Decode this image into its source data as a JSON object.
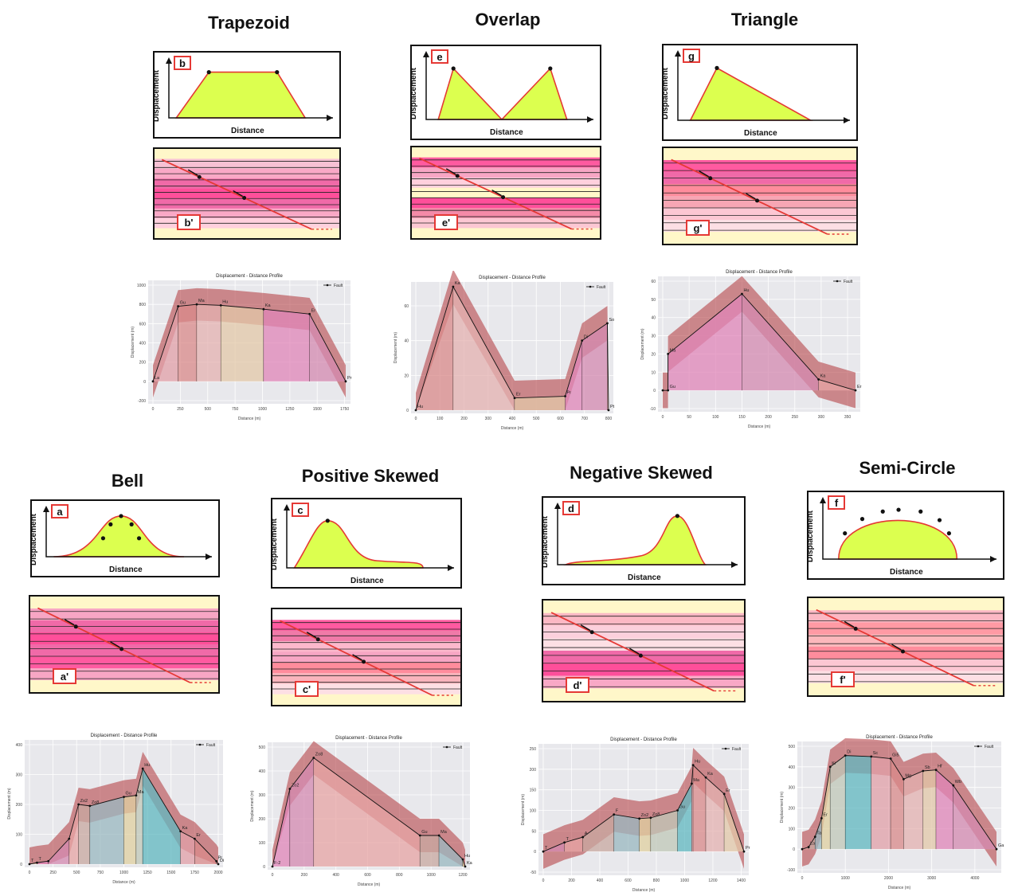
{
  "panels": [
    {
      "id": "trapezoid",
      "title": "Trapezoid",
      "badge": "b",
      "section_badge": "b'",
      "x_label": "Distance",
      "y_label": "Displacement",
      "profile": {
        "title": "Displacement - Distance Profile",
        "legend": "Fault",
        "xlabel": "Distance (m)",
        "ylabel": "Displacement (m)",
        "x_ticks": [
          "0",
          "250",
          "500",
          "750",
          "1000",
          "1250",
          "1500",
          "1750"
        ],
        "y_ticks": [
          "-200",
          "0",
          "200",
          "400",
          "600",
          "800",
          "1000"
        ],
        "points": [
          {
            "label": "La",
            "x": 0,
            "y": 0
          },
          {
            "label": "Gu",
            "x": 230,
            "y": 780
          },
          {
            "label": "Ma",
            "x": 400,
            "y": 800
          },
          {
            "label": "Hu",
            "x": 620,
            "y": 790
          },
          {
            "label": "Ka",
            "x": 1010,
            "y": 750
          },
          {
            "label": "Er",
            "x": 1430,
            "y": 700
          },
          {
            "label": "Pr",
            "x": 1760,
            "y": 0
          }
        ]
      }
    },
    {
      "id": "overlap",
      "title": "Overlap",
      "badge": "e",
      "section_badge": "e'",
      "x_label": "Distance",
      "y_label": "Displacement",
      "profile": {
        "title": "Displacement - Distance Profile",
        "legend": "Fault",
        "xlabel": "Distance (m)",
        "ylabel": "Displacement (m)",
        "x_ticks": [
          "0",
          "100",
          "200",
          "300",
          "400",
          "500",
          "600",
          "700",
          "800"
        ],
        "y_ticks": [
          "0",
          "20",
          "40",
          "60"
        ],
        "points": [
          {
            "label": "Hu",
            "x": 0,
            "y": 0
          },
          {
            "label": "Ka",
            "x": 155,
            "y": 71
          },
          {
            "label": "Er",
            "x": 410,
            "y": 7
          },
          {
            "label": "Pr",
            "x": 620,
            "y": 8
          },
          {
            "label": "Di",
            "x": 690,
            "y": 40
          },
          {
            "label": "So",
            "x": 795,
            "y": 50
          },
          {
            "label": "Pt",
            "x": 800,
            "y": 0
          }
        ]
      }
    },
    {
      "id": "triangle",
      "title": "Triangle",
      "badge": "g",
      "section_badge": "g'",
      "x_label": "Distance",
      "y_label": "Displacement",
      "profile": {
        "title": "Displacement - Distance Profile",
        "legend": "Fault",
        "xlabel": "Distance (m)",
        "ylabel": "Displacement (m)",
        "x_ticks": [
          "0",
          "50",
          "100",
          "150",
          "200",
          "250",
          "300",
          "350"
        ],
        "y_ticks": [
          "-10",
          "0",
          "10",
          "20",
          "30",
          "40",
          "50",
          "60"
        ],
        "points": [
          {
            "label": "",
            "x": 0,
            "y": 0
          },
          {
            "label": "Gu",
            "x": 10,
            "y": 0
          },
          {
            "label": "Ma",
            "x": 10,
            "y": 20
          },
          {
            "label": "Hu",
            "x": 150,
            "y": 53
          },
          {
            "label": "Ka",
            "x": 295,
            "y": 6
          },
          {
            "label": "Er",
            "x": 365,
            "y": 0
          }
        ]
      }
    },
    {
      "id": "bell",
      "title": "Bell",
      "badge": "a",
      "section_badge": "a'",
      "x_label": "Distance",
      "y_label": "Displacement",
      "profile": {
        "title": "Displacement - Distance Profile",
        "legend": "Fault",
        "xlabel": "Distance (m)",
        "ylabel": "Displacement (m)",
        "x_ticks": [
          "0",
          "250",
          "500",
          "750",
          "1000",
          "1250",
          "1500",
          "1750",
          "2000"
        ],
        "y_ticks": [
          "0",
          "100",
          "200",
          "300",
          "400"
        ],
        "points": [
          {
            "label": "T",
            "x": 0,
            "y": 0
          },
          {
            "label": "T",
            "x": 80,
            "y": 5
          },
          {
            "label": "",
            "x": 200,
            "y": 10
          },
          {
            "label": "",
            "x": 420,
            "y": 85
          },
          {
            "label": "Zo2",
            "x": 520,
            "y": 200
          },
          {
            "label": "Zo8",
            "x": 640,
            "y": 195
          },
          {
            "label": "Gu",
            "x": 1000,
            "y": 225
          },
          {
            "label": "Ma",
            "x": 1130,
            "y": 230
          },
          {
            "label": "Hu",
            "x": 1200,
            "y": 320
          },
          {
            "label": "Ka",
            "x": 1600,
            "y": 110
          },
          {
            "label": "Er",
            "x": 1750,
            "y": 85
          },
          {
            "label": "Pr",
            "x": 1980,
            "y": 10
          },
          {
            "label": "Di",
            "x": 2000,
            "y": 0
          }
        ]
      }
    },
    {
      "id": "positive-skewed",
      "title": "Positive Skewed",
      "badge": "c",
      "section_badge": "c'",
      "x_label": "Distance",
      "y_label": "Displacement",
      "profile": {
        "title": "Displacement - Distance Profile",
        "legend": "Fault",
        "xlabel": "Distance (m)",
        "ylabel": "Displacement (m)",
        "x_ticks": [
          "0",
          "200",
          "400",
          "600",
          "800",
          "1000",
          "1200"
        ],
        "y_ticks": [
          "0",
          "100",
          "200",
          "300",
          "400",
          "500"
        ],
        "points": [
          {
            "label": "F-2",
            "x": 0,
            "y": 0
          },
          {
            "label": "Zo2",
            "x": 110,
            "y": 325
          },
          {
            "label": "Zo8",
            "x": 260,
            "y": 455
          },
          {
            "label": "Gu",
            "x": 930,
            "y": 130
          },
          {
            "label": "Ma",
            "x": 1050,
            "y": 130
          },
          {
            "label": "Hu",
            "x": 1200,
            "y": 30
          },
          {
            "label": "Ka",
            "x": 1215,
            "y": 0
          }
        ]
      }
    },
    {
      "id": "negative-skewed",
      "title": "Negative Skewed",
      "badge": "d",
      "section_badge": "d'",
      "x_label": "Distance",
      "y_label": "Displacement",
      "profile": {
        "title": "Displacement - Distance Profile",
        "legend": "Fault",
        "xlabel": "Distance (m)",
        "ylabel": "Displacement (m)",
        "x_ticks": [
          "0",
          "200",
          "400",
          "600",
          "800",
          "1000",
          "1200",
          "1400"
        ],
        "y_ticks": [
          "-50",
          "0",
          "50",
          "100",
          "150",
          "200",
          "250"
        ],
        "points": [
          {
            "label": "T",
            "x": 0,
            "y": 0
          },
          {
            "label": "T",
            "x": 150,
            "y": 22
          },
          {
            "label": "A",
            "x": 280,
            "y": 35
          },
          {
            "label": "F",
            "x": 500,
            "y": 90
          },
          {
            "label": "Zo2",
            "x": 680,
            "y": 80
          },
          {
            "label": "Zo8",
            "x": 760,
            "y": 82
          },
          {
            "label": "Gu",
            "x": 950,
            "y": 100
          },
          {
            "label": "Ma",
            "x": 1050,
            "y": 165
          },
          {
            "label": "Hu",
            "x": 1060,
            "y": 210
          },
          {
            "label": "Ka",
            "x": 1150,
            "y": 180
          },
          {
            "label": "Er",
            "x": 1280,
            "y": 140
          },
          {
            "label": "Pr",
            "x": 1420,
            "y": 0
          }
        ]
      }
    },
    {
      "id": "semi-circle",
      "title": "Semi-Circle",
      "badge": "f",
      "section_badge": "f'",
      "x_label": "Distance",
      "y_label": "Displacement",
      "profile": {
        "title": "Displacement - Distance Profile",
        "legend": "Fault",
        "xlabel": "Distance (m)",
        "ylabel": "Displacement (m)",
        "x_ticks": [
          "0",
          "1000",
          "2000",
          "3000",
          "4000"
        ],
        "y_ticks": [
          "-100",
          "0",
          "100",
          "200",
          "300",
          "400",
          "500"
        ],
        "points": [
          {
            "label": "",
            "x": 0,
            "y": 0
          },
          {
            "label": "La",
            "x": 150,
            "y": 10
          },
          {
            "label": "Ta",
            "x": 300,
            "y": 60
          },
          {
            "label": "Er",
            "x": 450,
            "y": 150
          },
          {
            "label": "Ki",
            "x": 650,
            "y": 400
          },
          {
            "label": "Di",
            "x": 1000,
            "y": 455
          },
          {
            "label": "Sc",
            "x": 1600,
            "y": 450
          },
          {
            "label": "Gi5",
            "x": 2050,
            "y": 440
          },
          {
            "label": "Mg",
            "x": 2350,
            "y": 340
          },
          {
            "label": "Sb",
            "x": 2800,
            "y": 380
          },
          {
            "label": "Hf",
            "x": 3100,
            "y": 385
          },
          {
            "label": "Wb",
            "x": 3500,
            "y": 310
          },
          {
            "label": "Ga",
            "x": 4500,
            "y": 0
          }
        ]
      }
    }
  ]
}
